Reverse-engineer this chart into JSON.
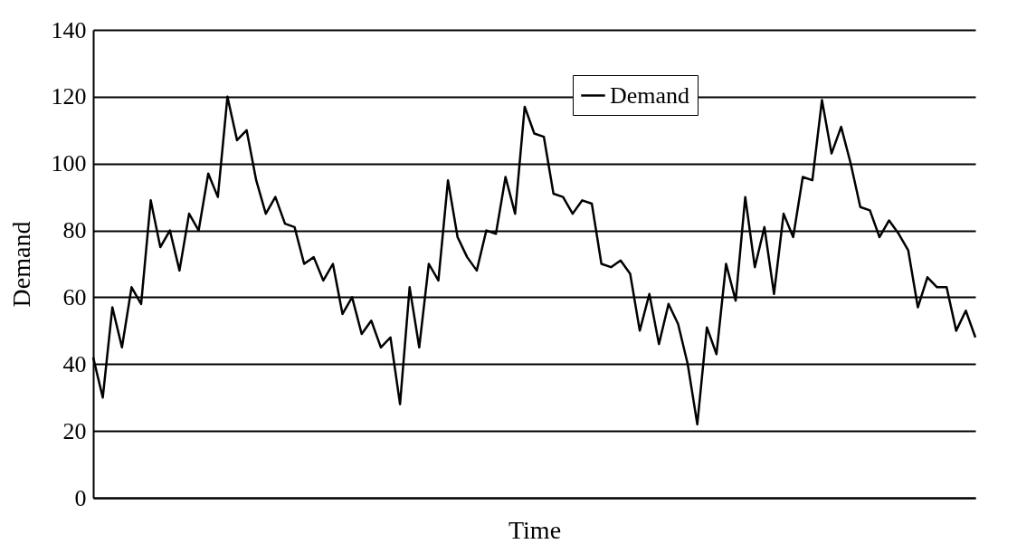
{
  "chart_data": {
    "type": "line",
    "xlabel": "Time",
    "ylabel": "Demand",
    "categories": [
      null,
      null,
      null,
      null,
      null,
      null,
      null,
      null,
      null,
      null,
      null,
      null,
      null,
      null,
      null,
      null,
      null,
      null,
      null,
      null,
      null,
      null,
      null,
      null,
      null,
      null,
      null,
      null,
      null,
      null,
      null,
      null,
      null,
      null,
      null,
      null,
      null,
      null,
      null,
      null,
      null,
      null,
      null,
      null,
      null,
      null,
      null,
      null,
      null,
      null,
      null,
      null,
      null,
      null,
      null,
      null,
      null,
      null,
      null,
      null,
      null,
      null,
      null,
      null,
      null,
      null,
      null,
      null,
      null,
      null,
      null,
      null,
      null,
      null,
      null,
      null,
      null,
      null,
      null,
      null,
      null,
      null,
      null,
      null,
      null,
      null,
      null,
      null,
      null,
      null,
      null,
      null,
      null
    ],
    "series": [
      {
        "name": "Demand",
        "color": "#000000",
        "values": [
          42,
          30,
          57,
          45,
          63,
          58,
          89,
          75,
          80,
          68,
          85,
          80,
          97,
          90,
          120,
          107,
          110,
          95,
          85,
          90,
          82,
          81,
          70,
          72,
          65,
          70,
          55,
          60,
          49,
          53,
          45,
          48,
          28,
          63,
          45,
          70,
          65,
          95,
          78,
          72,
          68,
          80,
          79,
          96,
          85,
          117,
          109,
          108,
          91,
          90,
          85,
          89,
          88,
          70,
          69,
          71,
          67,
          50,
          61,
          46,
          58,
          52,
          40,
          22,
          51,
          43,
          70,
          59,
          90,
          69,
          81,
          61,
          85,
          78,
          96,
          95,
          119,
          103,
          111,
          100,
          87,
          86,
          78,
          83,
          79,
          74,
          57,
          66,
          63,
          63,
          50,
          56,
          48
        ]
      }
    ],
    "ylim": [
      0,
      140
    ],
    "yticks": [
      0,
      20,
      40,
      60,
      80,
      100,
      120,
      140
    ],
    "grid": "y",
    "legend": "top right",
    "marker": "none",
    "line_style": "solid",
    "tick_labels": "y"
  }
}
